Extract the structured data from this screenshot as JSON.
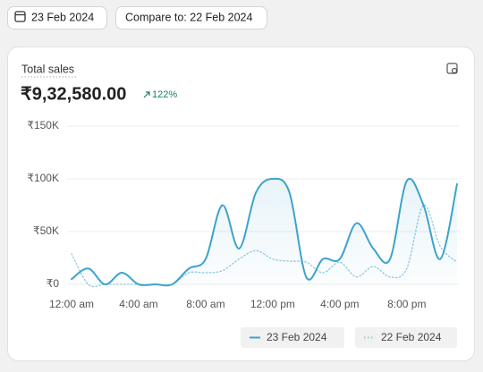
{
  "header": {
    "date_button": "23 Feb 2024",
    "compare_button": "Compare to: 22 Feb 2024"
  },
  "card": {
    "title": "Total sales",
    "total": "₹9,32,580.00",
    "change": "122%"
  },
  "chart_data": {
    "type": "line",
    "categories": [
      "12:00 am",
      null,
      null,
      null,
      "4:00 am",
      null,
      null,
      null,
      "8:00 am",
      null,
      null,
      null,
      "12:00 pm",
      null,
      null,
      null,
      "4:00 pm",
      null,
      null,
      null,
      "8:00 pm",
      null,
      null,
      null
    ],
    "series": [
      {
        "name": "23 Feb 2024",
        "color": "#3ea3cb",
        "style": "solid",
        "values": [
          5000,
          15000,
          0,
          11000,
          0,
          0,
          0,
          15000,
          24000,
          75000,
          34000,
          87000,
          100000,
          87000,
          7000,
          24000,
          24000,
          58000,
          34000,
          24000,
          98000,
          75000,
          24000,
          95000
        ]
      },
      {
        "name": "22 Feb 2024",
        "color": "#8fc9e0",
        "style": "dotted",
        "values": [
          29000,
          0,
          0,
          0,
          0,
          0,
          0,
          11000,
          11000,
          13000,
          24000,
          32000,
          24000,
          22000,
          21000,
          11000,
          21000,
          7000,
          17000,
          7000,
          15000,
          75000,
          36000,
          21000
        ]
      }
    ],
    "ylim": [
      0,
      150000
    ],
    "yticks": [
      {
        "value": 0,
        "label": "₹0"
      },
      {
        "value": 50000,
        "label": "₹50K"
      },
      {
        "value": 100000,
        "label": "₹100K"
      },
      {
        "value": 150000,
        "label": "₹150K"
      }
    ],
    "grid": true
  }
}
